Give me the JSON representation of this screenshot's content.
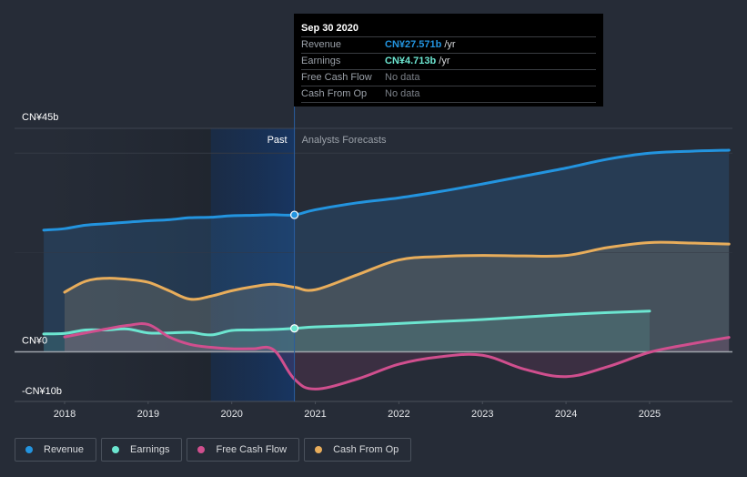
{
  "tooltip": {
    "date": "Sep 30 2020",
    "rows": [
      {
        "label": "Revenue",
        "value": "CN¥27.571b",
        "unit": "/yr",
        "color": "#2394df"
      },
      {
        "label": "Earnings",
        "value": "CN¥4.713b",
        "unit": "/yr",
        "color": "#6ce5d0"
      },
      {
        "label": "Free Cash Flow",
        "value": "No data",
        "unit": "",
        "color": "#7b8088"
      },
      {
        "label": "Cash From Op",
        "value": "No data",
        "unit": "",
        "color": "#7b8088"
      }
    ]
  },
  "legend": [
    {
      "label": "Revenue",
      "color": "#2394df"
    },
    {
      "label": "Earnings",
      "color": "#6ce5d0"
    },
    {
      "label": "Free Cash Flow",
      "color": "#d04f8e"
    },
    {
      "label": "Cash From Op",
      "color": "#e8ad5b"
    }
  ],
  "chart_data": {
    "type": "area",
    "title": "",
    "currency_unit": "CN¥ billions",
    "ylim": [
      -10,
      45
    ],
    "y_tick_labels": [
      {
        "value": 45,
        "label": "CN¥45b"
      },
      {
        "value": 0,
        "label": "CN¥0"
      },
      {
        "value": -10,
        "label": "-CN¥10b"
      }
    ],
    "x_range": [
      2017.75,
      2025.95
    ],
    "x_tick_labels": [
      "2018",
      "2019",
      "2020",
      "2021",
      "2022",
      "2023",
      "2024",
      "2025"
    ],
    "past_label": "Past",
    "forecast_label": "Analysts Forecasts",
    "past_end": 2020.75,
    "highlight_start": 2019.75,
    "series": [
      {
        "name": "Revenue",
        "color": "#2394df",
        "points": [
          [
            2017.75,
            24.5
          ],
          [
            2018.0,
            24.8
          ],
          [
            2018.25,
            25.5
          ],
          [
            2018.5,
            25.8
          ],
          [
            2018.75,
            26.1
          ],
          [
            2019.0,
            26.4
          ],
          [
            2019.25,
            26.6
          ],
          [
            2019.5,
            27.0
          ],
          [
            2019.75,
            27.1
          ],
          [
            2020.0,
            27.4
          ],
          [
            2020.25,
            27.5
          ],
          [
            2020.5,
            27.6
          ],
          [
            2020.75,
            27.571
          ],
          [
            2021.0,
            28.6
          ],
          [
            2021.5,
            30.0
          ],
          [
            2022.0,
            31.0
          ],
          [
            2022.5,
            32.3
          ],
          [
            2023.0,
            33.8
          ],
          [
            2023.5,
            35.4
          ],
          [
            2024.0,
            37.0
          ],
          [
            2024.5,
            38.8
          ],
          [
            2025.0,
            40.0
          ],
          [
            2025.5,
            40.4
          ],
          [
            2025.95,
            40.6
          ]
        ]
      },
      {
        "name": "Earnings",
        "color": "#6ce5d0",
        "points": [
          [
            2017.75,
            3.6
          ],
          [
            2018.0,
            3.7
          ],
          [
            2018.25,
            4.4
          ],
          [
            2018.5,
            4.4
          ],
          [
            2018.75,
            4.6
          ],
          [
            2019.0,
            3.8
          ],
          [
            2019.25,
            3.8
          ],
          [
            2019.5,
            3.9
          ],
          [
            2019.75,
            3.4
          ],
          [
            2020.0,
            4.3
          ],
          [
            2020.25,
            4.4
          ],
          [
            2020.5,
            4.5
          ],
          [
            2020.75,
            4.713
          ],
          [
            2021.0,
            5.0
          ],
          [
            2021.5,
            5.3
          ],
          [
            2022.0,
            5.7
          ],
          [
            2022.5,
            6.1
          ],
          [
            2023.0,
            6.5
          ],
          [
            2023.5,
            7.0
          ],
          [
            2024.0,
            7.5
          ],
          [
            2024.5,
            7.9
          ],
          [
            2025.0,
            8.2
          ]
        ]
      },
      {
        "name": "Free Cash Flow",
        "color": "#d04f8e",
        "points": [
          [
            2018.0,
            3.0
          ],
          [
            2018.25,
            3.8
          ],
          [
            2018.5,
            4.6
          ],
          [
            2018.75,
            5.3
          ],
          [
            2019.0,
            5.5
          ],
          [
            2019.25,
            3.0
          ],
          [
            2019.5,
            1.5
          ],
          [
            2019.75,
            0.9
          ],
          [
            2020.0,
            0.6
          ],
          [
            2020.25,
            0.6
          ],
          [
            2020.5,
            0.4
          ],
          [
            2020.75,
            -5.5
          ],
          [
            2021.0,
            -7.5
          ],
          [
            2021.5,
            -5.5
          ],
          [
            2022.0,
            -2.5
          ],
          [
            2022.5,
            -1.0
          ],
          [
            2023.0,
            -0.7
          ],
          [
            2023.5,
            -3.5
          ],
          [
            2024.0,
            -5.0
          ],
          [
            2024.5,
            -3.0
          ],
          [
            2025.0,
            -0.1
          ],
          [
            2025.5,
            1.6
          ],
          [
            2025.95,
            2.9
          ]
        ]
      },
      {
        "name": "Cash From Op",
        "color": "#e8ad5b",
        "points": [
          [
            2018.0,
            12.0
          ],
          [
            2018.25,
            14.2
          ],
          [
            2018.5,
            14.8
          ],
          [
            2018.75,
            14.6
          ],
          [
            2019.0,
            14.0
          ],
          [
            2019.25,
            12.3
          ],
          [
            2019.5,
            10.6
          ],
          [
            2019.75,
            11.2
          ],
          [
            2020.0,
            12.3
          ],
          [
            2020.25,
            13.1
          ],
          [
            2020.5,
            13.6
          ],
          [
            2020.75,
            13.0
          ],
          [
            2021.0,
            12.5
          ],
          [
            2021.5,
            15.5
          ],
          [
            2022.0,
            18.5
          ],
          [
            2022.5,
            19.2
          ],
          [
            2023.0,
            19.4
          ],
          [
            2023.5,
            19.3
          ],
          [
            2024.0,
            19.4
          ],
          [
            2024.5,
            21.0
          ],
          [
            2025.0,
            22.0
          ],
          [
            2025.5,
            21.9
          ],
          [
            2025.95,
            21.7
          ]
        ]
      }
    ],
    "markers": [
      {
        "series": "Revenue",
        "x": 2020.75,
        "y": 27.571
      },
      {
        "series": "Earnings",
        "x": 2020.75,
        "y": 4.713
      }
    ],
    "grid": true,
    "legend_position": "bottom-left"
  }
}
